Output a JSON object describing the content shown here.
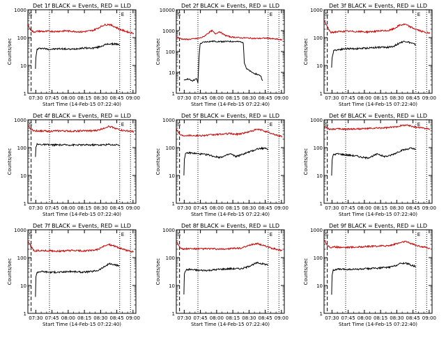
{
  "figure": {
    "xlabel": "Start Time (14-Feb-15 07:22:40)",
    "ylabel": "Counts/sec",
    "x_tick_labels": [
      "07:30",
      "07:45",
      "08:00",
      "08:15",
      "08:30",
      "08:45",
      "09:00"
    ],
    "y_tick_labels": [
      "1",
      "10",
      "100",
      "1000"
    ],
    "marker_S": "S",
    "marker_E": "E",
    "colors": {
      "events": "#000000",
      "lld": "#cc0000",
      "axes": "#000000"
    }
  },
  "chart_data": [
    {
      "type": "line",
      "title": "Det 1f BLACK = Events, RED = LLD",
      "xlabel": "Start Time (14-Feb-15 07:22:40)",
      "ylabel": "Counts/sec",
      "x_unit": "minutes after 07:22:40",
      "xlim": [
        0,
        100
      ],
      "y_scale": "log",
      "ylim": [
        1,
        1000
      ],
      "markers": {
        "S": 0.5,
        "E": 85
      },
      "dotted_lines": [
        20,
        85,
        95
      ],
      "dashed_lines": [
        3
      ],
      "series": [
        {
          "color": "#000000",
          "x": [
            7,
            7.5,
            8.5,
            12,
            20,
            30,
            40,
            50,
            60,
            65,
            70,
            75,
            78,
            81,
            84,
            85
          ],
          "y": [
            8,
            20,
            38,
            42,
            38,
            40,
            38,
            42,
            42,
            45,
            53,
            60,
            58,
            60,
            55,
            50
          ]
        },
        {
          "color": "#cc0000",
          "x": [
            0,
            2,
            5,
            10,
            15,
            20,
            25,
            30,
            35,
            40,
            45,
            50,
            55,
            60,
            65,
            70,
            75,
            80,
            85,
            90,
            95,
            98
          ],
          "y": [
            300,
            200,
            160,
            170,
            165,
            170,
            165,
            170,
            175,
            170,
            165,
            160,
            170,
            180,
            220,
            280,
            300,
            250,
            200,
            170,
            150,
            145
          ]
        }
      ]
    },
    {
      "type": "line",
      "title": "Det 2f BLACK = Events, RED = LLD",
      "xlabel": "Start Time (14-Feb-15 07:22:40)",
      "ylabel": "Counts/sec",
      "x_unit": "minutes after 07:22:40",
      "xlim": [
        0,
        100
      ],
      "y_scale": "log",
      "ylim": [
        1,
        10000
      ],
      "markers": {
        "S": 0.5,
        "E": 85
      },
      "dotted_lines": [
        20,
        85,
        95
      ],
      "dashed_lines": [
        3
      ],
      "series": [
        {
          "color": "#000000",
          "x": [
            7,
            10,
            15,
            19,
            20,
            21,
            22,
            25,
            30,
            35,
            40,
            45,
            50,
            55,
            60,
            62,
            63,
            65,
            70,
            75,
            78,
            80
          ],
          "y": [
            4,
            5,
            4,
            5,
            3,
            50,
            230,
            280,
            300,
            310,
            300,
            300,
            305,
            300,
            290,
            270,
            30,
            15,
            10,
            8,
            7,
            4
          ]
        },
        {
          "color": "#cc0000",
          "x": [
            0,
            5,
            10,
            15,
            20,
            25,
            30,
            33,
            36,
            40,
            45,
            50,
            55,
            60,
            65,
            70,
            75,
            80,
            85,
            90,
            95,
            98
          ],
          "y": [
            500,
            400,
            380,
            400,
            420,
            500,
            800,
            1000,
            700,
            900,
            600,
            500,
            480,
            450,
            450,
            430,
            420,
            430,
            440,
            400,
            380,
            350
          ]
        }
      ]
    },
    {
      "type": "line",
      "title": "Det 3f BLACK = Events, RED = LLD",
      "xlabel": "Start Time (14-Feb-15 07:22:40)",
      "ylabel": "Counts/sec",
      "x_unit": "minutes after 07:22:40",
      "xlim": [
        0,
        100
      ],
      "y_scale": "log",
      "ylim": [
        1,
        1000
      ],
      "markers": {
        "S": 0.5,
        "E": 85
      },
      "dotted_lines": [
        20,
        85,
        95
      ],
      "dashed_lines": [
        3
      ],
      "series": [
        {
          "color": "#000000",
          "x": [
            7,
            7.5,
            9,
            15,
            20,
            30,
            40,
            50,
            60,
            65,
            70,
            75,
            80,
            85
          ],
          "y": [
            8,
            20,
            35,
            38,
            40,
            40,
            42,
            45,
            45,
            50,
            65,
            75,
            65,
            55
          ]
        },
        {
          "color": "#cc0000",
          "x": [
            0,
            3,
            6,
            10,
            20,
            30,
            40,
            50,
            60,
            65,
            70,
            75,
            80,
            85,
            90,
            95,
            98
          ],
          "y": [
            400,
            250,
            150,
            160,
            170,
            165,
            160,
            170,
            180,
            210,
            280,
            300,
            240,
            200,
            170,
            150,
            140
          ]
        }
      ]
    },
    {
      "type": "line",
      "title": "Det 4f BLACK = Events, RED = LLD",
      "xlabel": "Start Time (14-Feb-15 07:22:40)",
      "ylabel": "Counts/sec",
      "x_unit": "minutes after 07:22:40",
      "xlim": [
        0,
        100
      ],
      "y_scale": "log",
      "ylim": [
        1,
        1000
      ],
      "markers": {
        "S": 0.5,
        "E": 85
      },
      "dotted_lines": [
        20,
        85,
        95
      ],
      "dashed_lines": [
        3
      ],
      "series": [
        {
          "color": "#000000",
          "x": [
            7,
            7.5,
            8.5,
            12,
            20,
            30,
            40,
            50,
            60,
            65,
            70,
            75,
            80,
            83,
            85
          ],
          "y": [
            45,
            110,
            130,
            130,
            125,
            125,
            125,
            125,
            125,
            125,
            125,
            130,
            125,
            130,
            120
          ]
        },
        {
          "color": "#cc0000",
          "x": [
            0,
            3,
            6,
            10,
            20,
            30,
            40,
            50,
            60,
            65,
            70,
            75,
            80,
            85,
            90,
            95,
            98
          ],
          "y": [
            600,
            450,
            400,
            400,
            390,
            400,
            390,
            400,
            400,
            420,
            500,
            580,
            520,
            430,
            400,
            390,
            380
          ]
        }
      ]
    },
    {
      "type": "line",
      "title": "Det 5f BLACK = Events, RED = LLD",
      "xlabel": "Start Time (14-Feb-15 07:22:40)",
      "ylabel": "Counts/sec",
      "x_unit": "minutes after 07:22:40",
      "xlim": [
        0,
        100
      ],
      "y_scale": "log",
      "ylim": [
        1,
        1000
      ],
      "markers": {
        "S": 0.5,
        "E": 85
      },
      "dotted_lines": [
        20,
        85,
        95
      ],
      "dashed_lines": [
        3
      ],
      "series": [
        {
          "color": "#000000",
          "x": [
            7,
            7.5,
            8.5,
            12,
            20,
            30,
            35,
            40,
            45,
            50,
            55,
            60,
            65,
            70,
            75,
            80,
            85
          ],
          "y": [
            10,
            40,
            60,
            65,
            60,
            55,
            48,
            45,
            50,
            60,
            48,
            55,
            65,
            75,
            90,
            95,
            90
          ]
        },
        {
          "color": "#cc0000",
          "x": [
            0,
            3,
            6,
            10,
            20,
            30,
            40,
            50,
            55,
            60,
            65,
            70,
            75,
            80,
            85,
            90,
            95,
            98
          ],
          "y": [
            500,
            300,
            270,
            280,
            270,
            280,
            300,
            320,
            300,
            320,
            350,
            400,
            450,
            420,
            350,
            300,
            270,
            250
          ]
        }
      ]
    },
    {
      "type": "line",
      "title": "Det 6f BLACK = Events, RED = LLD",
      "xlabel": "Start Time (14-Feb-15 07:22:40)",
      "ylabel": "Counts/sec",
      "x_unit": "minutes after 07:22:40",
      "xlim": [
        0,
        100
      ],
      "y_scale": "log",
      "ylim": [
        1,
        1000
      ],
      "markers": {
        "S": 0.5,
        "E": 85
      },
      "dotted_lines": [
        20,
        85,
        95
      ],
      "dashed_lines": [
        3
      ],
      "series": [
        {
          "color": "#000000",
          "x": [
            7,
            7.5,
            8.5,
            12,
            20,
            30,
            35,
            40,
            45,
            50,
            55,
            60,
            65,
            70,
            75,
            80,
            85
          ],
          "y": [
            10,
            35,
            55,
            60,
            55,
            50,
            45,
            42,
            50,
            60,
            48,
            50,
            60,
            75,
            85,
            95,
            85
          ]
        },
        {
          "color": "#cc0000",
          "x": [
            0,
            3,
            6,
            10,
            20,
            30,
            40,
            50,
            60,
            65,
            70,
            75,
            80,
            85,
            90,
            95,
            98
          ],
          "y": [
            600,
            480,
            460,
            470,
            460,
            470,
            480,
            500,
            520,
            550,
            600,
            650,
            600,
            550,
            520,
            480,
            450
          ]
        }
      ]
    },
    {
      "type": "line",
      "title": "Det 7f BLACK = Events, RED = LLD",
      "xlabel": "Start Time (14-Feb-15 07:22:40)",
      "ylabel": "Counts/sec",
      "x_unit": "minutes after 07:22:40",
      "xlim": [
        0,
        100
      ],
      "y_scale": "log",
      "ylim": [
        1,
        1000
      ],
      "markers": {
        "S": 0.5,
        "E": 85
      },
      "dotted_lines": [
        20,
        85,
        95
      ],
      "dashed_lines": [
        3
      ],
      "series": [
        {
          "color": "#000000",
          "x": [
            7,
            7.5,
            8.5,
            12,
            20,
            30,
            40,
            50,
            60,
            65,
            70,
            75,
            80,
            85
          ],
          "y": [
            4,
            20,
            30,
            32,
            30,
            30,
            32,
            30,
            32,
            35,
            45,
            60,
            55,
            50
          ]
        },
        {
          "color": "#cc0000",
          "x": [
            0,
            3,
            6,
            10,
            20,
            30,
            40,
            50,
            60,
            65,
            70,
            75,
            80,
            85,
            90,
            95,
            98
          ],
          "y": [
            400,
            250,
            170,
            180,
            175,
            170,
            180,
            175,
            180,
            200,
            250,
            300,
            260,
            220,
            190,
            170,
            160
          ]
        }
      ]
    },
    {
      "type": "line",
      "title": "Det 8f BLACK = Events, RED = LLD",
      "xlabel": "Start Time (14-Feb-15 07:22:40)",
      "ylabel": "Counts/sec",
      "x_unit": "minutes after 07:22:40",
      "xlim": [
        0,
        100
      ],
      "y_scale": "log",
      "ylim": [
        1,
        1000
      ],
      "markers": {
        "S": 0.5,
        "E": 85
      },
      "dotted_lines": [
        20,
        85,
        95
      ],
      "dashed_lines": [
        3
      ],
      "series": [
        {
          "color": "#000000",
          "x": [
            7,
            7.5,
            8.5,
            12,
            20,
            30,
            40,
            50,
            60,
            65,
            70,
            75,
            80,
            85
          ],
          "y": [
            5,
            25,
            35,
            38,
            35,
            35,
            38,
            40,
            40,
            45,
            55,
            65,
            60,
            55
          ]
        },
        {
          "color": "#cc0000",
          "x": [
            0,
            3,
            6,
            10,
            20,
            30,
            40,
            50,
            60,
            65,
            70,
            75,
            80,
            85,
            90,
            95,
            98
          ],
          "y": [
            400,
            250,
            200,
            210,
            205,
            210,
            200,
            210,
            220,
            250,
            300,
            320,
            280,
            240,
            210,
            190,
            180
          ]
        }
      ]
    },
    {
      "type": "line",
      "title": "Det 9f BLACK = Events, RED = LLD",
      "xlabel": "Start Time (14-Feb-15 07:22:40)",
      "ylabel": "Counts/sec",
      "x_unit": "minutes after 07:22:40",
      "xlim": [
        0,
        100
      ],
      "y_scale": "log",
      "ylim": [
        1,
        1000
      ],
      "markers": {
        "S": 0.5,
        "E": 85
      },
      "dotted_lines": [
        20,
        85,
        95
      ],
      "dashed_lines": [
        3
      ],
      "series": [
        {
          "color": "#000000",
          "x": [
            7,
            7.5,
            8.5,
            12,
            20,
            30,
            40,
            50,
            60,
            65,
            70,
            75,
            80,
            85
          ],
          "y": [
            5,
            25,
            35,
            38,
            38,
            38,
            40,
            42,
            45,
            50,
            60,
            65,
            55,
            48
          ]
        },
        {
          "color": "#cc0000",
          "x": [
            0,
            3,
            6,
            10,
            20,
            30,
            40,
            50,
            60,
            65,
            70,
            75,
            80,
            85,
            90,
            95,
            98
          ],
          "y": [
            450,
            280,
            230,
            240,
            235,
            240,
            250,
            260,
            270,
            300,
            340,
            380,
            330,
            280,
            250,
            230,
            210
          ]
        }
      ]
    }
  ]
}
